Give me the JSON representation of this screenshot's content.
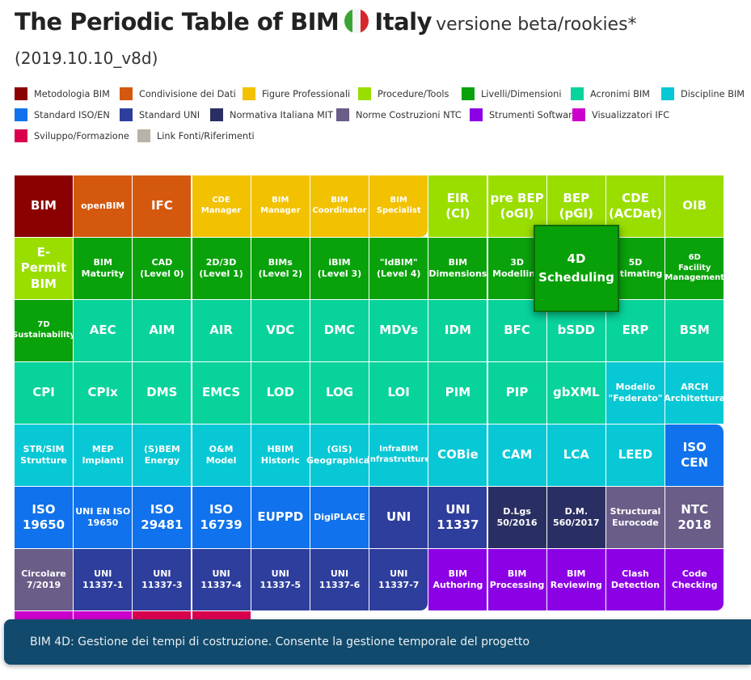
{
  "header": {
    "title": "The Periodic Table of BIM",
    "country": "Italy",
    "subtitle": "versione beta/rookies*",
    "version": "(2019.10.10_v8d)"
  },
  "legend": [
    {
      "label": "Metodologia BIM",
      "color": "#8b0000"
    },
    {
      "label": "Condivisione dei Dati",
      "color": "#d4590f"
    },
    {
      "label": "Figure Professionali",
      "color": "#f2c200"
    },
    {
      "label": "Procedure/Tools",
      "color": "#9ade00"
    },
    {
      "label": "Livelli/Dimensioni",
      "color": "#09a20b"
    },
    {
      "label": "Acronimi BIM",
      "color": "#08d39b"
    },
    {
      "label": "Discipline BIM",
      "color": "#08c8d5"
    },
    {
      "label": "Standard ISO/EN",
      "color": "#1072ec"
    },
    {
      "label": "Standard UNI",
      "color": "#2e3e9c"
    },
    {
      "label": "Normativa Italiana MIT",
      "color": "#2a2f63"
    },
    {
      "label": "Norme Costruzioni NTC",
      "color": "#6a5d88"
    },
    {
      "label": "Strumenti Software",
      "color": "#8c00e6"
    },
    {
      "label": "Visualizzatori IFC",
      "color": "#cc00cc"
    },
    {
      "label": "Sviluppo/Formazione",
      "color": "#d8004d"
    },
    {
      "label": "Link Fonti/Riferimenti",
      "color": "#b8b2a8"
    }
  ],
  "rows": [
    [
      {
        "label": "BIM",
        "cat": 0,
        "size": "big"
      },
      {
        "label": "openBIM",
        "cat": 1,
        "size": "mid"
      },
      {
        "label": "IFC",
        "cat": 1,
        "size": "big"
      },
      {
        "label": "CDE\nManager",
        "cat": 2,
        "size": "small"
      },
      {
        "label": "BIM\nManager",
        "cat": 2,
        "size": "small"
      },
      {
        "label": "BIM\nCoordinator",
        "cat": 2,
        "size": "small"
      },
      {
        "label": "BIM\nSpecialist",
        "cat": 2,
        "size": "small"
      },
      {
        "label": "EIR\n(CI)",
        "cat": 3,
        "size": "big"
      },
      {
        "label": "pre BEP\n(oGI)",
        "cat": 3,
        "size": "big"
      },
      {
        "label": "BEP\n(pGI)",
        "cat": 3,
        "size": "big"
      },
      {
        "label": "CDE\n(ACDat)",
        "cat": 3,
        "size": "big"
      },
      {
        "label": "OIB",
        "cat": 3,
        "size": "big"
      }
    ],
    [
      {
        "label": "E-Permit\nBIM",
        "cat": 3,
        "size": "big"
      },
      {
        "label": "BIM\nMaturity",
        "cat": 4,
        "size": "mid"
      },
      {
        "label": "CAD\n(Level 0)",
        "cat": 4,
        "size": "mid"
      },
      {
        "label": "2D/3D\n(Level 1)",
        "cat": 4,
        "size": "mid"
      },
      {
        "label": "BIMs\n(Level 2)",
        "cat": 4,
        "size": "mid"
      },
      {
        "label": "iBIM\n(Level 3)",
        "cat": 4,
        "size": "mid"
      },
      {
        "label": "\"IdBIM\"\n(Level 4)",
        "cat": 4,
        "size": "mid"
      },
      {
        "label": "BIM\nDimensions",
        "cat": 4,
        "size": "mid"
      },
      {
        "label": "3D\nModelling",
        "cat": 4,
        "size": "mid"
      },
      {
        "label": "4D\nScheduling",
        "cat": 4,
        "size": "mid"
      },
      {
        "label": "5D\nEstimating",
        "cat": 4,
        "size": "mid"
      },
      {
        "label": "6D\nFacility\nManagement",
        "cat": 4,
        "size": "small"
      }
    ],
    [
      {
        "label": "7D\nSustainability",
        "cat": 4,
        "size": "small"
      },
      {
        "label": "AEC",
        "cat": 5,
        "size": "big"
      },
      {
        "label": "AIM",
        "cat": 5,
        "size": "big"
      },
      {
        "label": "AIR",
        "cat": 5,
        "size": "big"
      },
      {
        "label": "VDC",
        "cat": 5,
        "size": "big"
      },
      {
        "label": "DMC",
        "cat": 5,
        "size": "big"
      },
      {
        "label": "MDVs",
        "cat": 5,
        "size": "big"
      },
      {
        "label": "IDM",
        "cat": 5,
        "size": "big"
      },
      {
        "label": "BFC",
        "cat": 5,
        "size": "big"
      },
      {
        "label": "bSDD",
        "cat": 5,
        "size": "big"
      },
      {
        "label": "ERP",
        "cat": 5,
        "size": "big"
      },
      {
        "label": "BSM",
        "cat": 5,
        "size": "big"
      }
    ],
    [
      {
        "label": "CPI",
        "cat": 5,
        "size": "big"
      },
      {
        "label": "CPIx",
        "cat": 5,
        "size": "big"
      },
      {
        "label": "DMS",
        "cat": 5,
        "size": "big"
      },
      {
        "label": "EMCS",
        "cat": 5,
        "size": "big"
      },
      {
        "label": "LOD",
        "cat": 5,
        "size": "big"
      },
      {
        "label": "LOG",
        "cat": 5,
        "size": "big"
      },
      {
        "label": "LOI",
        "cat": 5,
        "size": "big"
      },
      {
        "label": "PIM",
        "cat": 5,
        "size": "big"
      },
      {
        "label": "PIP",
        "cat": 5,
        "size": "big"
      },
      {
        "label": "gbXML",
        "cat": 5,
        "size": "big"
      },
      {
        "label": "Modello\n\"Federato\"",
        "cat": 6,
        "size": "mid"
      },
      {
        "label": "ARCH\nArchitettura",
        "cat": 6,
        "size": "mid"
      }
    ],
    [
      {
        "label": "STR/SIM\nStrutture",
        "cat": 6,
        "size": "mid"
      },
      {
        "label": "MEP\nImpianti",
        "cat": 6,
        "size": "mid"
      },
      {
        "label": "(S)BEM\nEnergy",
        "cat": 6,
        "size": "mid"
      },
      {
        "label": "O&M\nModel",
        "cat": 6,
        "size": "mid"
      },
      {
        "label": "HBIM\nHistoric",
        "cat": 6,
        "size": "mid"
      },
      {
        "label": "(GIS)\nGeographical",
        "cat": 6,
        "size": "mid"
      },
      {
        "label": "InfraBIM\nInfrastrutture",
        "cat": 6,
        "size": "small"
      },
      {
        "label": "COBie",
        "cat": 6,
        "size": "big"
      },
      {
        "label": "CAM",
        "cat": 6,
        "size": "big"
      },
      {
        "label": "LCA",
        "cat": 6,
        "size": "big"
      },
      {
        "label": "LEED",
        "cat": 6,
        "size": "big"
      },
      {
        "label": "ISO\nCEN",
        "cat": 7,
        "size": "big"
      }
    ],
    [
      {
        "label": "ISO\n19650",
        "cat": 7,
        "size": "big"
      },
      {
        "label": "UNI EN ISO\n19650",
        "cat": 7,
        "size": "mid"
      },
      {
        "label": "ISO\n29481",
        "cat": 7,
        "size": "big"
      },
      {
        "label": "ISO\n16739",
        "cat": 7,
        "size": "big"
      },
      {
        "label": "EUPPD",
        "cat": 7,
        "size": "big"
      },
      {
        "label": "DigiPLACE",
        "cat": 7,
        "size": "mid"
      },
      {
        "label": "UNI",
        "cat": 8,
        "size": "big"
      },
      {
        "label": "UNI\n11337",
        "cat": 8,
        "size": "big"
      },
      {
        "label": "D.Lgs\n50/2016",
        "cat": 9,
        "size": "mid"
      },
      {
        "label": "D.M.\n560/2017",
        "cat": 9,
        "size": "mid"
      },
      {
        "label": "Structural\nEurocode",
        "cat": 10,
        "size": "mid"
      },
      {
        "label": "NTC\n2018",
        "cat": 10,
        "size": "big"
      }
    ],
    [
      {
        "label": "Circolare\n7/2019",
        "cat": 10,
        "size": "mid"
      },
      {
        "label": "UNI\n11337-1",
        "cat": 8,
        "size": "mid"
      },
      {
        "label": "UNI\n11337-3",
        "cat": 8,
        "size": "mid"
      },
      {
        "label": "UNI\n11337-4",
        "cat": 8,
        "size": "mid"
      },
      {
        "label": "UNI\n11337-5",
        "cat": 8,
        "size": "mid"
      },
      {
        "label": "UNI\n11337-6",
        "cat": 8,
        "size": "mid"
      },
      {
        "label": "UNI\n11337-7",
        "cat": 8,
        "size": "mid"
      },
      {
        "label": "BIM\nAuthoring",
        "cat": 11,
        "size": "mid"
      },
      {
        "label": "BIM\nProcessing",
        "cat": 11,
        "size": "mid"
      },
      {
        "label": "BIM\nReviewing",
        "cat": 11,
        "size": "mid"
      },
      {
        "label": "Clash\nDetection",
        "cat": 11,
        "size": "mid"
      },
      {
        "label": "Code\nChecking",
        "cat": 11,
        "size": "mid"
      }
    ],
    [
      {
        "label": "",
        "cat": 12,
        "size": "mid"
      },
      {
        "label": "",
        "cat": 12,
        "size": "mid"
      },
      {
        "label": "",
        "cat": 13,
        "size": "mid"
      },
      {
        "label": "",
        "cat": 13,
        "size": "mid"
      }
    ]
  ],
  "hover": {
    "label": "4D\nScheduling",
    "description": "BIM 4D: Gestione dei tempi di costruzione. Consente la gestione temporale del progetto"
  }
}
